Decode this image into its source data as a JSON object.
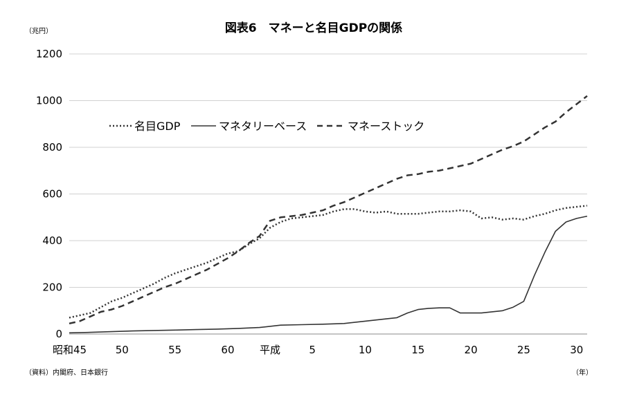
{
  "chart_data": {
    "type": "line",
    "title": "図表6　マネーと名目GDPの関係",
    "ylabel": "（兆円）",
    "xunit": "（年）",
    "source": "（資料）内閣府、日本銀行",
    "ylim": [
      0,
      1200
    ],
    "yticks": [
      "0",
      "200",
      "400",
      "600",
      "800",
      "1000",
      "1200"
    ],
    "xlim": [
      1970,
      2019
    ],
    "xticks": [
      {
        "year": 1970,
        "label": "昭和45"
      },
      {
        "year": 1975,
        "label": "50"
      },
      {
        "year": 1980,
        "label": "55"
      },
      {
        "year": 1985,
        "label": "60"
      },
      {
        "year": 1989,
        "label": "平成"
      },
      {
        "year": 1993,
        "label": "5"
      },
      {
        "year": 1998,
        "label": "10"
      },
      {
        "year": 2003,
        "label": "15"
      },
      {
        "year": 2008,
        "label": "20"
      },
      {
        "year": 2013,
        "label": "25"
      },
      {
        "year": 2018,
        "label": "30"
      }
    ],
    "grid": "horizontal",
    "legend_placement": "top-left",
    "series": [
      {
        "name": "名目GDP",
        "style": "dotted",
        "color": "#333333",
        "x": [
          1970,
          1971,
          1972,
          1973,
          1974,
          1975,
          1976,
          1977,
          1978,
          1979,
          1980,
          1981,
          1982,
          1983,
          1984,
          1985,
          1986,
          1987,
          1988,
          1989,
          1990,
          1991,
          1992,
          1993,
          1994,
          1995,
          1996,
          1997,
          1998,
          1999,
          2000,
          2001,
          2002,
          2003,
          2004,
          2005,
          2006,
          2007,
          2008,
          2009,
          2010,
          2011,
          2012,
          2013,
          2014,
          2015,
          2016,
          2017,
          2018,
          2019
        ],
        "values": [
          70,
          80,
          90,
          115,
          140,
          155,
          175,
          195,
          215,
          240,
          260,
          275,
          290,
          305,
          325,
          345,
          355,
          385,
          410,
          455,
          480,
          495,
          500,
          505,
          510,
          525,
          535,
          535,
          525,
          520,
          525,
          515,
          515,
          515,
          520,
          525,
          525,
          530,
          525,
          495,
          500,
          490,
          495,
          490,
          505,
          515,
          530,
          540,
          545,
          550
        ]
      },
      {
        "name": "マネタリーベース",
        "style": "solid",
        "color": "#333333",
        "x": [
          1970,
          1972,
          1974,
          1976,
          1978,
          1980,
          1982,
          1984,
          1986,
          1988,
          1990,
          1992,
          1994,
          1996,
          1998,
          2000,
          2001,
          2002,
          2003,
          2004,
          2005,
          2006,
          2007,
          2008,
          2009,
          2010,
          2011,
          2012,
          2013,
          2014,
          2015,
          2016,
          2017,
          2018,
          2019
        ],
        "values": [
          5,
          7,
          10,
          13,
          15,
          17,
          19,
          21,
          24,
          28,
          38,
          40,
          42,
          45,
          55,
          65,
          70,
          90,
          105,
          110,
          112,
          112,
          90,
          90,
          90,
          95,
          100,
          115,
          140,
          250,
          350,
          440,
          480,
          495,
          505
        ]
      },
      {
        "name": "マネーストック",
        "style": "dashed",
        "color": "#333333",
        "x": [
          1970,
          1971,
          1972,
          1973,
          1974,
          1975,
          1976,
          1977,
          1978,
          1979,
          1980,
          1981,
          1982,
          1983,
          1984,
          1985,
          1986,
          1987,
          1988,
          1989,
          1990,
          1991,
          1992,
          1993,
          1994,
          1995,
          1996,
          1997,
          1998,
          1999,
          2000,
          2001,
          2002,
          2003,
          2004,
          2005,
          2006,
          2007,
          2008,
          2009,
          2010,
          2011,
          2012,
          2013,
          2014,
          2015,
          2016,
          2017,
          2018,
          2019
        ],
        "values": [
          45,
          55,
          75,
          95,
          105,
          120,
          140,
          160,
          180,
          200,
          215,
          235,
          255,
          275,
          300,
          325,
          355,
          390,
          420,
          485,
          500,
          505,
          510,
          520,
          530,
          550,
          565,
          585,
          605,
          625,
          645,
          665,
          680,
          685,
          695,
          700,
          710,
          720,
          730,
          750,
          770,
          790,
          805,
          825,
          855,
          885,
          910,
          950,
          985,
          1020
        ]
      }
    ]
  }
}
